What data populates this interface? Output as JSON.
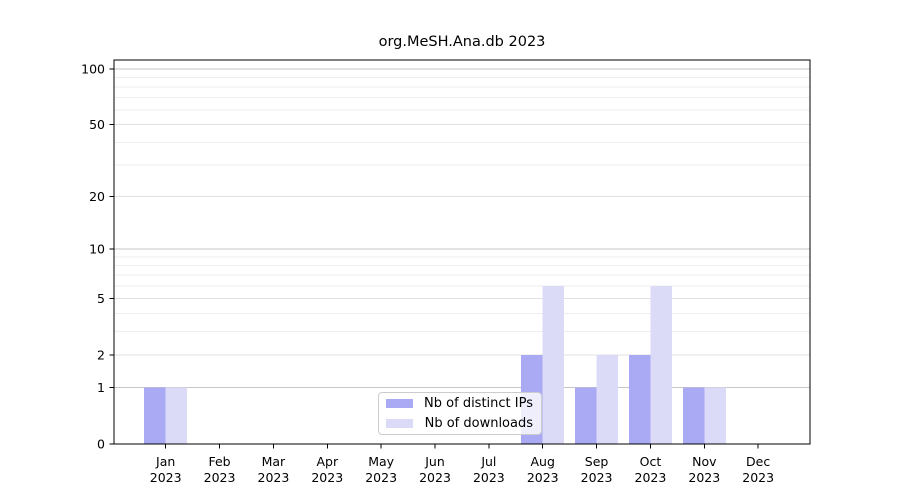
{
  "title": "org.MeSH.Ana.db 2023",
  "background_color": "#ffffff",
  "chart_data": {
    "type": "bar",
    "title": "org.MeSH.Ana.db 2023",
    "categories": [
      "Jan",
      "Feb",
      "Mar",
      "Apr",
      "May",
      "Jun",
      "Jul",
      "Aug",
      "Sep",
      "Oct",
      "Nov",
      "Dec"
    ],
    "year": "2023",
    "series": [
      {
        "name": "Nb of distinct IPs",
        "color": "#a9a9f4",
        "values": [
          1,
          0,
          0,
          0,
          0,
          0,
          0,
          2,
          1,
          2,
          1,
          0
        ]
      },
      {
        "name": "Nb of downloads",
        "color": "#dbdbf8",
        "values": [
          1,
          0,
          0,
          0,
          0,
          0,
          0,
          6,
          2,
          6,
          1,
          0
        ]
      }
    ],
    "xlabel": "",
    "ylabel": "",
    "yscale": "log1p",
    "ylim": [
      0,
      112
    ],
    "y_ticks": [
      0,
      1,
      2,
      5,
      10,
      20,
      50,
      100
    ],
    "y_minor_ticks": [
      3,
      4,
      6,
      7,
      8,
      9,
      30,
      40,
      60,
      70,
      80,
      90
    ],
    "grid": true,
    "grid_color_decade": "#c6c6c6",
    "grid_color_major": "#e1e1e1",
    "grid_color_minor": "#eeeeee",
    "axis_color": "#000000",
    "legend_position": "lower center"
  }
}
